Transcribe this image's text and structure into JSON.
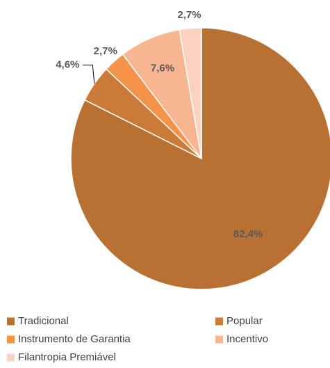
{
  "chart_data": {
    "type": "pie",
    "categories": [
      "Tradicional",
      "Popular",
      "Instrumento de Garantia",
      "Incentivo",
      "Filantropia Premiável"
    ],
    "values": [
      82.4,
      4.6,
      2.7,
      7.6,
      2.7
    ],
    "value_labels": [
      "82,4%",
      "4,6%",
      "2,7%",
      "7,6%",
      "2,7%"
    ],
    "colors": [
      "#b87033",
      "#cc7a37",
      "#f5934a",
      "#f8b592",
      "#fad2bf"
    ],
    "legend": "bottom"
  }
}
